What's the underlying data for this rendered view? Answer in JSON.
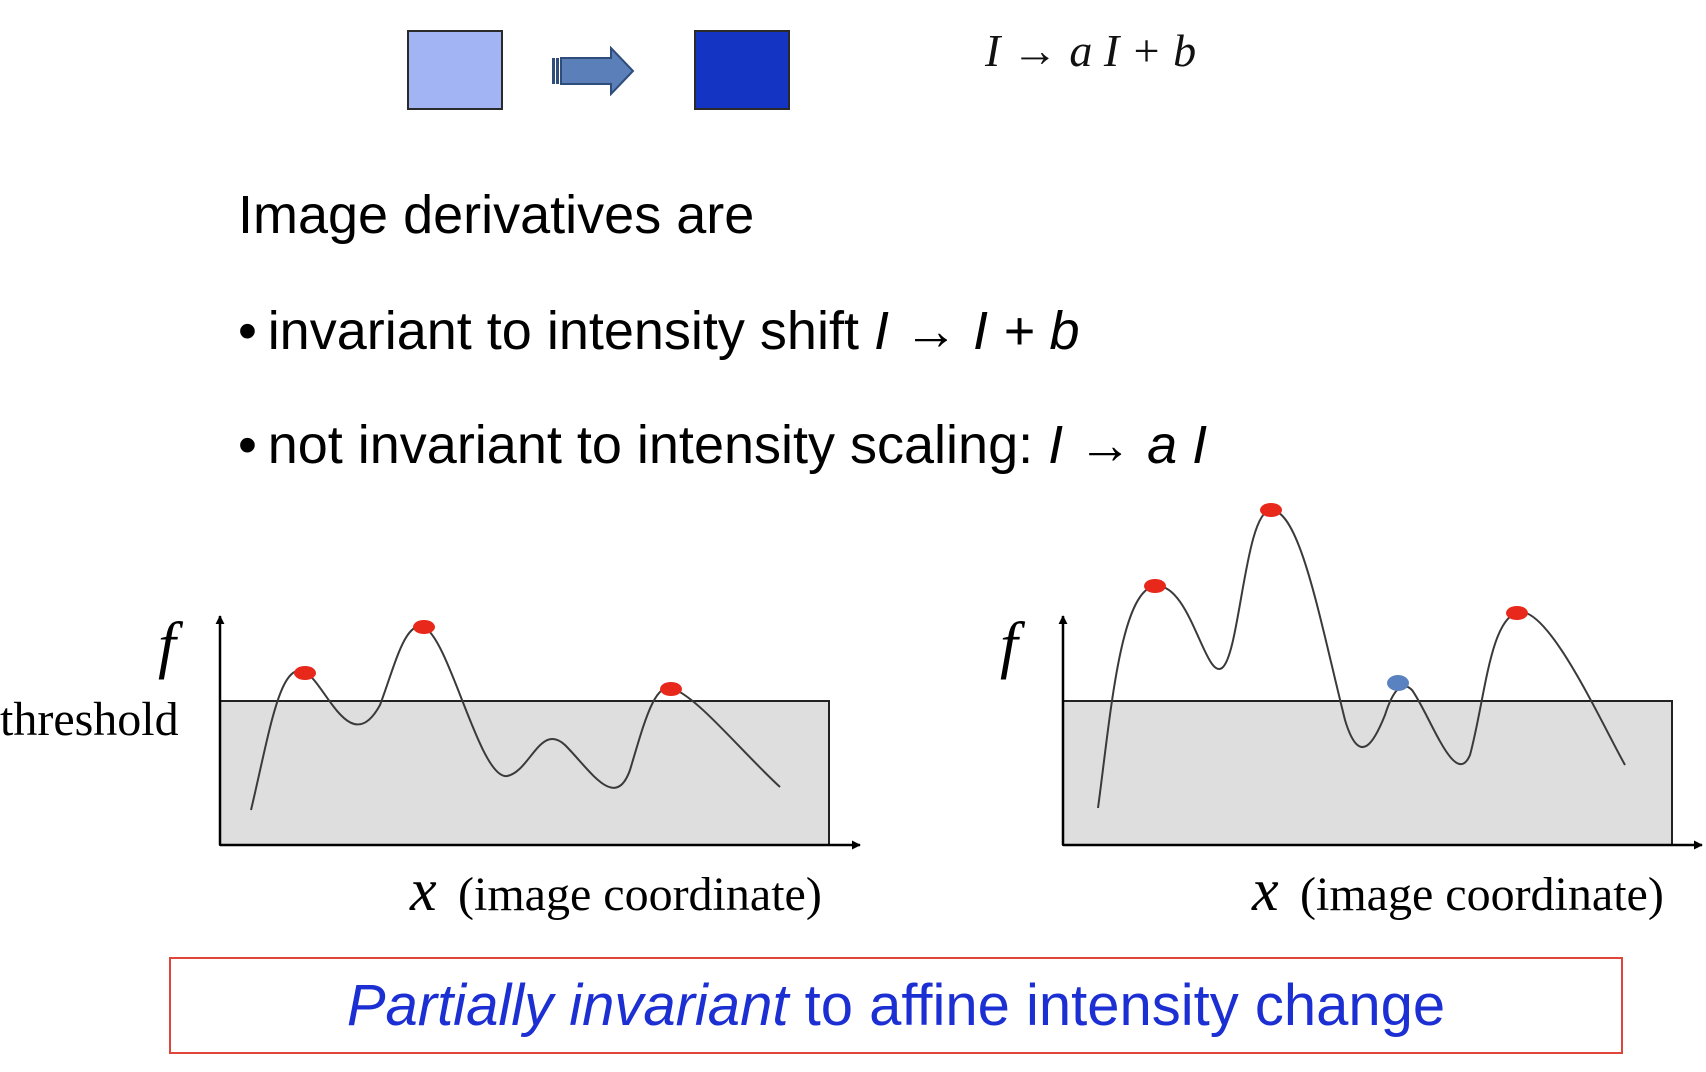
{
  "formula": "I → a I + b",
  "colors": {
    "swatch_before": "#a3b4f5",
    "swatch_after": "#1434c4",
    "arrow": "#5b7fb8",
    "threshold_fill": "#dedede",
    "peak_marker": "#e8281a",
    "new_peak_marker": "#5b82c0",
    "conclusion_text": "#1c2fd3",
    "conclusion_border": "#e0453a"
  },
  "icons": {
    "transform_arrow": "right-arrow-icon"
  },
  "text": {
    "heading": "Image derivatives are",
    "bullet1_prefix": "invariant to intensity shift ",
    "bullet1_formula": "I → I + b",
    "bullet2_prefix": "not invariant to intensity scaling: ",
    "bullet2_formula": "I → a I"
  },
  "graph_left": {
    "y_label": "f",
    "threshold_label": "threshold",
    "x_var": "x",
    "x_label": "(image coordinate)"
  },
  "graph_right": {
    "y_label": "f",
    "x_var": "x",
    "x_label": "(image coordinate)"
  },
  "conclusion": {
    "emphasis": "Partially invariant",
    "rest": " to affine intensity change"
  }
}
